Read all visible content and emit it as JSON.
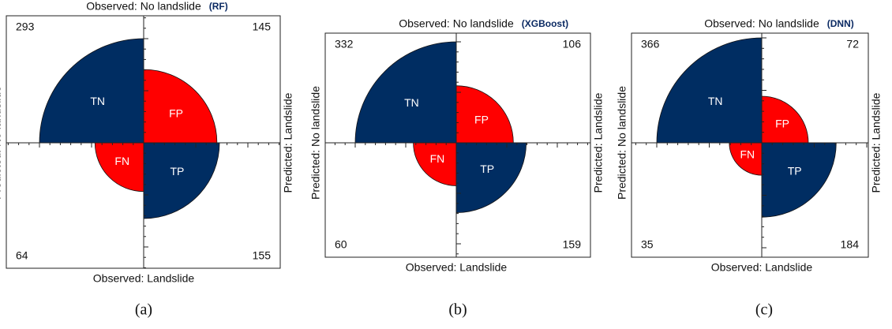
{
  "chart_data": [
    {
      "type": "fourfold",
      "title": "(RF)",
      "top_label": "Observed: No landslide",
      "bottom_label": "Observed: Landslide",
      "left_label": "Predicted: No landslide",
      "right_label": "Predicted: Landslide",
      "categories": [
        "TN",
        "FP",
        "FN",
        "TP"
      ],
      "values": [
        293,
        145,
        64,
        155
      ],
      "colors": [
        "#002d62",
        "#ff0000",
        "#ff0000",
        "#002d62"
      ],
      "caption": "(a)"
    },
    {
      "type": "fourfold",
      "title": "(XGBoost)",
      "top_label": "Observed: No landslide",
      "bottom_label": "Observed: Landslide",
      "left_label": "Predicted: No landslide",
      "right_label": "Predicted: Landslide",
      "categories": [
        "TN",
        "FP",
        "FN",
        "TP"
      ],
      "values": [
        332,
        106,
        60,
        159
      ],
      "colors": [
        "#002d62",
        "#ff0000",
        "#ff0000",
        "#002d62"
      ],
      "caption": "(b)"
    },
    {
      "type": "fourfold",
      "title": "(DNN)",
      "top_label": "Observed: No landslide",
      "bottom_label": "Observed: Landslide",
      "left_label": "Predicted: No landslide",
      "right_label": "Predicted: Landslide",
      "categories": [
        "TN",
        "FP",
        "FN",
        "TP"
      ],
      "values": [
        366,
        72,
        35,
        184
      ],
      "colors": [
        "#002d62",
        "#ff0000",
        "#ff0000",
        "#002d62"
      ],
      "caption": "(c)"
    }
  ]
}
